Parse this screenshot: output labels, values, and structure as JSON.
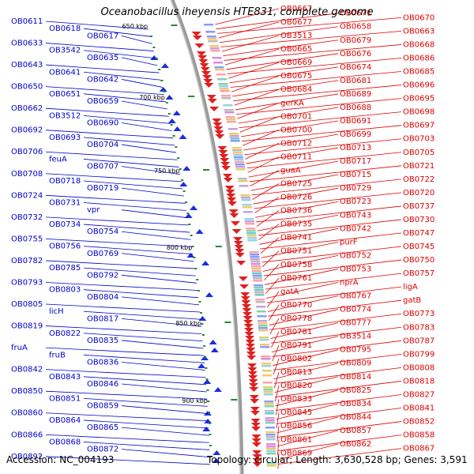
{
  "title": "Oceanobacillus iheyensis HTE831, complete genome",
  "accession": "Accession: NC_004193",
  "topology": "Topology: circular; Length: 3,630,528 bp; Genes: 3,591",
  "colors": {
    "left_labels": "#0000cc",
    "right_labels": "#dd0000",
    "backbone": "#9a9a9a",
    "tick_dot": "#2a8a2a"
  },
  "kbp_ticks": [
    "650 kbp",
    "700 kbp",
    "750 kbp",
    "800 kbp",
    "850 kbp",
    "900 kbp"
  ],
  "left_labels": [
    "OB0611",
    "OB0618",
    "OB0617",
    "OB0633",
    "OB3542",
    "OB0635",
    "OB0643",
    "OB0641",
    "OB0642",
    "OB0650",
    "OB0651",
    "OB0659",
    "OB0662",
    "OB3512",
    "OB0690",
    "OB0692",
    "OB0693",
    "OB0704",
    "OB0706",
    "feuA",
    "OB0707",
    "OB0708",
    "OB0718",
    "OB0719",
    "OB0724",
    "OB0731",
    "vpr",
    "OB0732",
    "OB0734",
    "OB0754",
    "OB0755",
    "OB0756",
    "OB0769",
    "OB0782",
    "OB0785",
    "OB0792",
    "OB0793",
    "OB0803",
    "OB0804",
    "OB0805",
    "licH",
    "OB0817",
    "OB0819",
    "OB0822",
    "OB0835",
    "fruA",
    "fruB",
    "OB0836",
    "OB0842",
    "OB0843",
    "OB0846",
    "OB0850",
    "OB0851",
    "OB0859",
    "OB0860",
    "OB0864",
    "OB0865",
    "OB0866",
    "OB0868",
    "OB0872",
    "OB0892"
  ],
  "right_labels": [
    "OB0667",
    "OB0671",
    "OB0670",
    "OB0677",
    "OB0658",
    "OB0663",
    "OB3513",
    "OB0679",
    "OB0668",
    "OB0665",
    "OB0676",
    "OB0686",
    "OB0669",
    "OB0674",
    "OB0685",
    "OB0675",
    "OB0681",
    "OB0696",
    "OB0684",
    "OB0689",
    "OB0695",
    "gerKA",
    "OB0688",
    "OB0698",
    "OB0701",
    "OB0691",
    "OB0697",
    "OB0700",
    "OB0699",
    "OB0703",
    "OB0712",
    "OB0713",
    "OB0705",
    "OB0711",
    "OB0717",
    "OB0721",
    "guaA",
    "OB0715",
    "OB0722",
    "OB0725",
    "OB0729",
    "OB0720",
    "OB0726",
    "OB0723",
    "OB0737",
    "OB0736",
    "OB0743",
    "OB0730",
    "OB0735",
    "OB0742",
    "OB0747",
    "OB0741",
    "purF",
    "OB0745",
    "OB0751",
    "OB0752",
    "OB0750",
    "OB0758",
    "OB0753",
    "OB0757",
    "OB0761",
    "nprA",
    "ligA",
    "gatA",
    "OB0767",
    "gatB",
    "OB0770",
    "OB0774",
    "OB0773",
    "OB0778",
    "OB0777",
    "OB0783",
    "OB0781",
    "OB3514",
    "OB0787",
    "OB0791",
    "OB0795",
    "OB0799",
    "OB0802",
    "OB0809",
    "OB0808",
    "OB0813",
    "OB0814",
    "OB0818",
    "OB0820",
    "OB0825",
    "OB0827",
    "OB0833",
    "OB0834",
    "OB0841",
    "OB0845",
    "OB0844",
    "OB0852",
    "OB0856",
    "OB0857",
    "OB0858",
    "OB0861",
    "OB0862",
    "OB0867",
    "OB0869"
  ]
}
